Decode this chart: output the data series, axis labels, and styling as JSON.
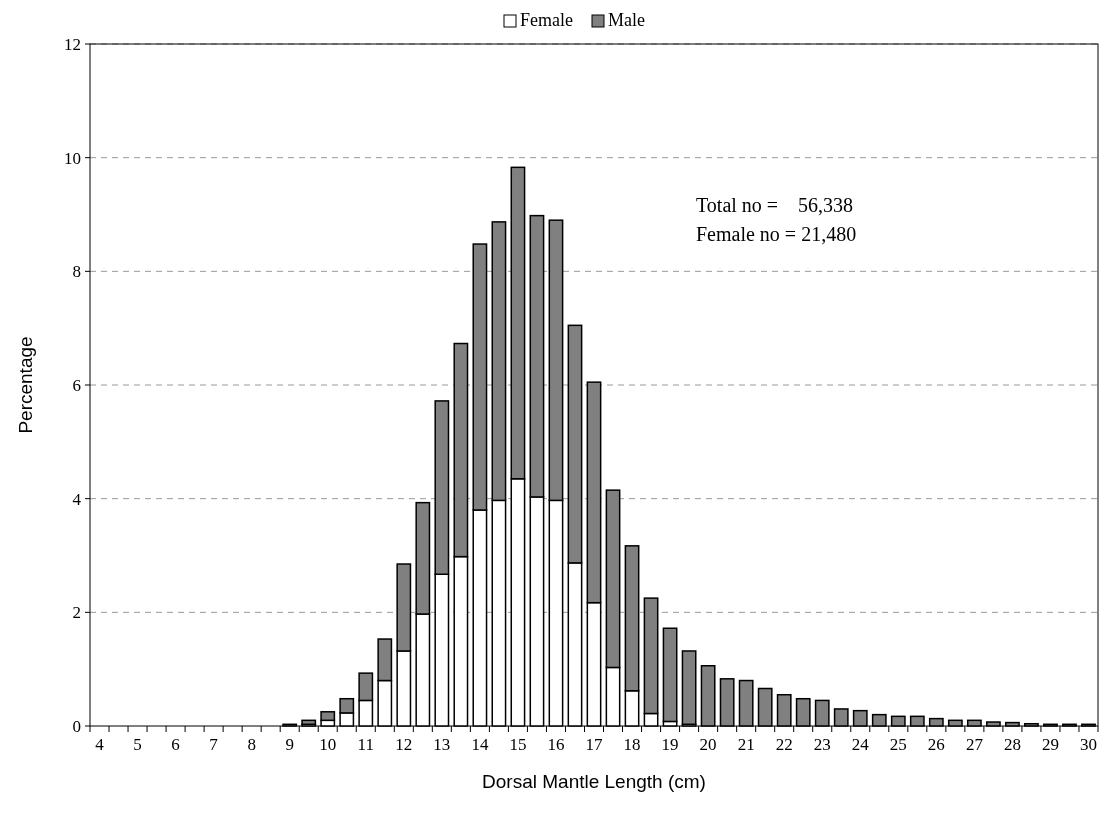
{
  "chart_data": {
    "type": "bar",
    "stacked": true,
    "xlabel": "Dorsal Mantle Length (cm)",
    "ylabel": "Percentage",
    "categories": [
      "4",
      null,
      "5",
      null,
      "6",
      null,
      "7",
      null,
      "8",
      null,
      "9",
      null,
      "10",
      null,
      "11",
      null,
      "12",
      null,
      "13",
      null,
      "14",
      null,
      "15",
      null,
      "16",
      null,
      "17",
      null,
      "18",
      null,
      "19",
      null,
      "20",
      null,
      "21",
      null,
      "22",
      null,
      "23",
      null,
      "24",
      null,
      "25",
      null,
      "26",
      null,
      "27",
      null,
      "28",
      null,
      "29",
      null,
      "30"
    ],
    "series": [
      {
        "name": "Female",
        "color": "#ffffff",
        "values": [
          0,
          0,
          0,
          0,
          0,
          0,
          0,
          0,
          0,
          0,
          0,
          0.03,
          0.1,
          0.23,
          0.45,
          0.8,
          1.32,
          1.97,
          2.67,
          2.98,
          3.8,
          3.97,
          4.35,
          4.03,
          3.97,
          2.87,
          2.17,
          1.03,
          0.62,
          0.22,
          0.08,
          0.03,
          null,
          0,
          0,
          0,
          0,
          0,
          0,
          0,
          0,
          0,
          0,
          0,
          0,
          0,
          0,
          0,
          0,
          0,
          0,
          0,
          0
        ]
      },
      {
        "name": "Male",
        "color": "#808080",
        "values": [
          0,
          0,
          0,
          0,
          0,
          0,
          0,
          0,
          0,
          0,
          0.03,
          0.07,
          0.15,
          0.25,
          0.48,
          0.73,
          1.53,
          1.96,
          3.05,
          3.75,
          4.68,
          4.9,
          5.48,
          4.95,
          4.93,
          4.18,
          3.88,
          3.12,
          2.55,
          2.03,
          1.64,
          1.29,
          1.06,
          0.83,
          0.8,
          0.66,
          0.55,
          0.48,
          0.45,
          0.3,
          0.27,
          0.2,
          0.17,
          0.17,
          0.13,
          0.1,
          0.1,
          0.07,
          0.06,
          0.04,
          0.03,
          0.03,
          0.03
        ]
      }
    ],
    "ylim": [
      0,
      12
    ],
    "yticks": [
      0,
      2,
      4,
      6,
      8,
      10,
      12
    ],
    "grid": "y",
    "legend": "top",
    "annotations": [
      "Total no =    56,338",
      "Female no = 21,480"
    ]
  }
}
